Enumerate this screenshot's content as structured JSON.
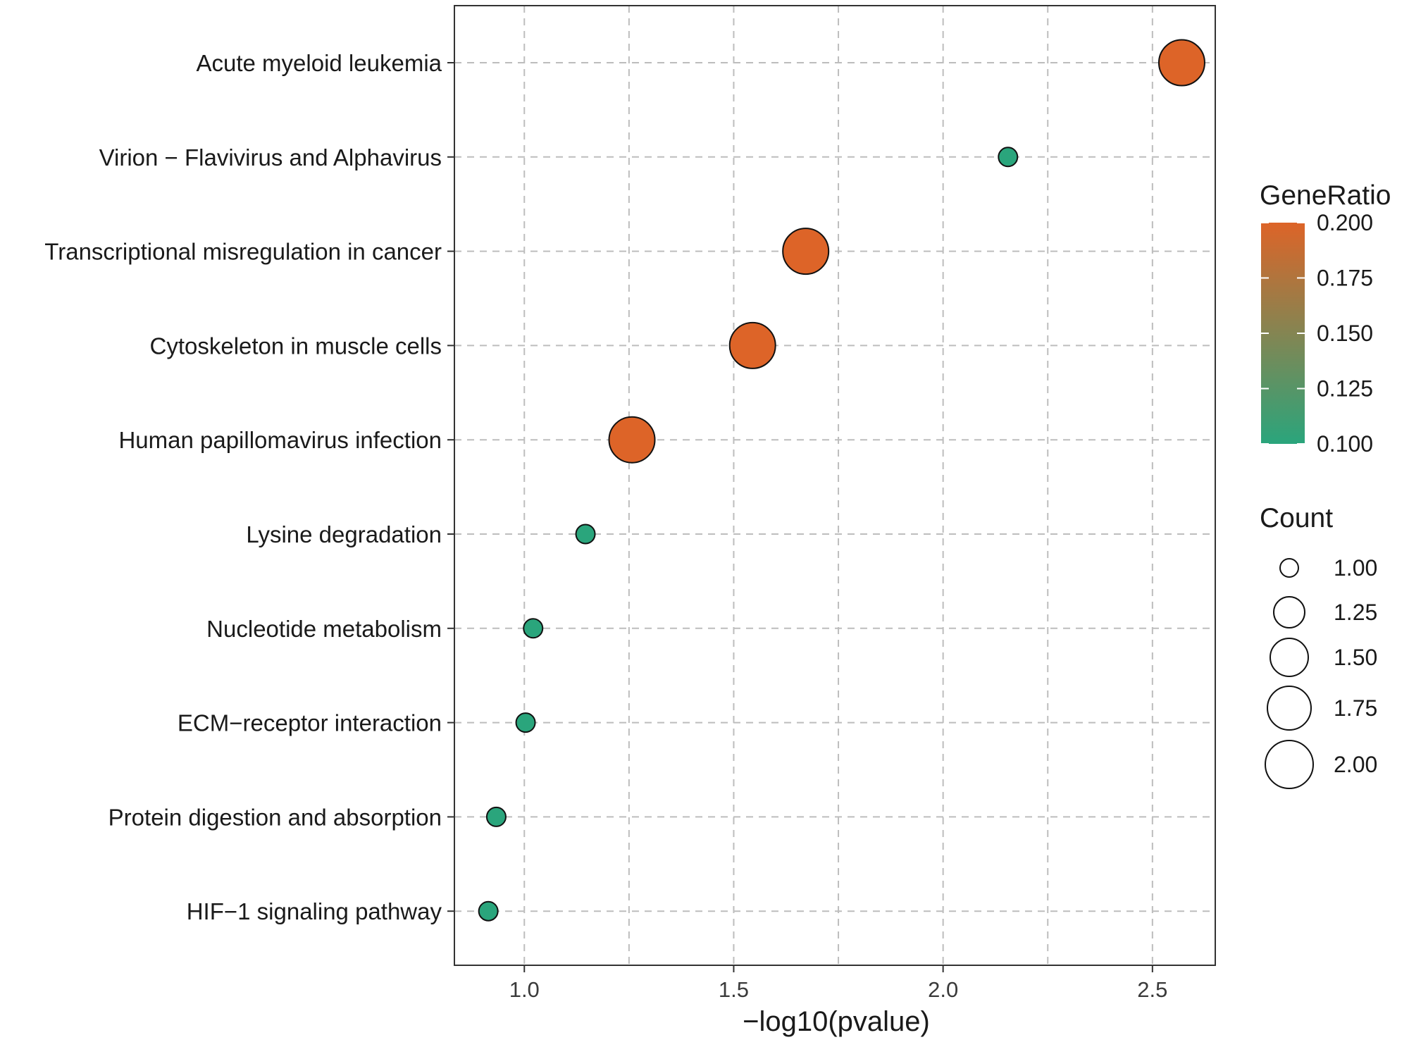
{
  "chart_data": {
    "type": "scatter",
    "subtype": "dotplot",
    "title": "",
    "xlabel": "−log10(pvalue)",
    "ylabel": "",
    "xlim": [
      0.833,
      2.65
    ],
    "xticks": [
      1.0,
      1.5,
      2.0,
      2.5
    ],
    "xtick_labels": [
      "1.0",
      "1.5",
      "2.0",
      "2.5"
    ],
    "x_minor_gridlines": [
      1.25,
      1.75,
      2.25
    ],
    "grid": true,
    "points": [
      {
        "term": "Acute myeloid leukemia",
        "x": 2.57,
        "gene_ratio": 0.2,
        "count": 2
      },
      {
        "term": "Virion − Flavivirus and Alphavirus",
        "x": 2.155,
        "gene_ratio": 0.1,
        "count": 1
      },
      {
        "term": "Transcriptional misregulation in cancer",
        "x": 1.672,
        "gene_ratio": 0.2,
        "count": 2
      },
      {
        "term": "Cytoskeleton in muscle cells",
        "x": 1.545,
        "gene_ratio": 0.2,
        "count": 2
      },
      {
        "term": "Human papillomavirus infection",
        "x": 1.257,
        "gene_ratio": 0.2,
        "count": 2
      },
      {
        "term": "Lysine degradation",
        "x": 1.146,
        "gene_ratio": 0.1,
        "count": 1
      },
      {
        "term": "Nucleotide metabolism",
        "x": 1.021,
        "gene_ratio": 0.1,
        "count": 1
      },
      {
        "term": "ECM−receptor interaction",
        "x": 1.003,
        "gene_ratio": 0.1,
        "count": 1
      },
      {
        "term": "Protein digestion and absorption",
        "x": 0.933,
        "gene_ratio": 0.1,
        "count": 1
      },
      {
        "term": "HIF−1 signaling pathway",
        "x": 0.914,
        "gene_ratio": 0.1,
        "count": 1
      }
    ],
    "color_legend": {
      "title": "GeneRatio",
      "range": [
        0.1,
        0.2
      ],
      "ticks": [
        "0.200",
        "0.175",
        "0.150",
        "0.125",
        "0.100"
      ],
      "low_color": "#2aa57c",
      "high_color": "#dd6428"
    },
    "size_legend": {
      "title": "Count",
      "entries": [
        {
          "label": "1.00",
          "value": 1.0
        },
        {
          "label": "1.25",
          "value": 1.25
        },
        {
          "label": "1.50",
          "value": 1.5
        },
        {
          "label": "1.75",
          "value": 1.75
        },
        {
          "label": "2.00",
          "value": 2.0
        }
      ]
    }
  }
}
